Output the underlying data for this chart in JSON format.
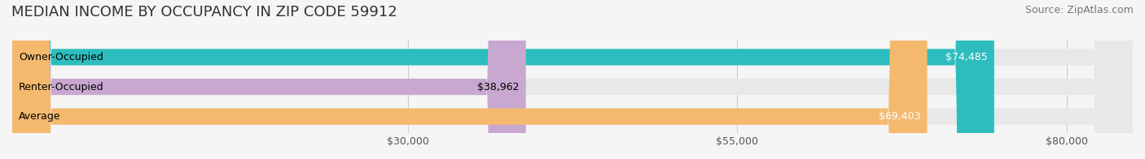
{
  "title": "MEDIAN INCOME BY OCCUPANCY IN ZIP CODE 59912",
  "source": "Source: ZipAtlas.com",
  "categories": [
    "Owner-Occupied",
    "Renter-Occupied",
    "Average"
  ],
  "values": [
    74485,
    38962,
    69403
  ],
  "bar_colors": [
    "#2dbdbe",
    "#c8a8d0",
    "#f5b96e"
  ],
  "label_colors": [
    "white",
    "black",
    "white"
  ],
  "value_labels": [
    "$74,485",
    "$38,962",
    "$69,403"
  ],
  "xlim": [
    0,
    85000
  ],
  "xticks": [
    30000,
    55000,
    80000
  ],
  "xtick_labels": [
    "$30,000",
    "$55,000",
    "$80,000"
  ],
  "bar_height": 0.55,
  "background_color": "#f5f5f5",
  "bar_bg_color": "#e8e8e8",
  "title_fontsize": 13,
  "source_fontsize": 9,
  "tick_fontsize": 9,
  "label_fontsize": 9,
  "value_fontsize": 9
}
